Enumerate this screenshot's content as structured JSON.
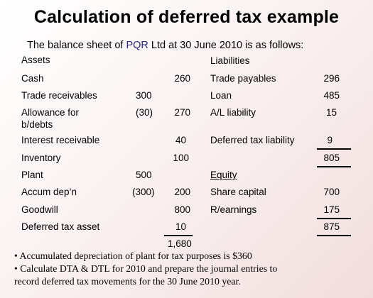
{
  "title": "Calculation of deferred tax example",
  "subtitle_prefix": "The balance sheet of ",
  "subtitle_company": "PQR",
  "subtitle_suffix": " Ltd at 30 June 2010 is as follows:",
  "headers": {
    "assets": "Assets",
    "liabilities": "Liabilities"
  },
  "assets": {
    "cash": {
      "label": "Cash",
      "value": "260"
    },
    "trade_receivables": {
      "label": "Trade receivables",
      "gross": "300"
    },
    "allowance": {
      "label_line1": "Allowance for",
      "label_line2": "b/debts",
      "gross": "(30)",
      "value": "270"
    },
    "interest_receivable": {
      "label": "Interest receivable",
      "value": "40"
    },
    "inventory": {
      "label": "Inventory",
      "value": "100"
    },
    "plant": {
      "label": "Plant",
      "gross": "500"
    },
    "accum_dep": {
      "label": "Accum dep’n",
      "gross": "(300)",
      "value": "200"
    },
    "goodwill": {
      "label": "Goodwill",
      "value": "800"
    },
    "deferred_tax_asset": {
      "label": "Deferred tax asset",
      "value": "10"
    },
    "total": "1,680"
  },
  "liabilities": {
    "trade_payables": {
      "label": "Trade payables",
      "value": "296"
    },
    "loan": {
      "label": "Loan",
      "value": "485"
    },
    "al_liability": {
      "label": "A/L liability",
      "value": "15"
    },
    "deferred_tax_liability": {
      "label": "Deferred tax liability",
      "value": "9"
    },
    "subtotal": "805",
    "equity_header": "Equity",
    "share_capital": {
      "label": "Share capital",
      "value": "700"
    },
    "r_earnings": {
      "label": "R/earnings",
      "value": "175"
    },
    "equity_total": "875"
  },
  "notes": [
    "• Accumulated depreciation of plant for tax purposes is $360",
    "• Calculate DTA & DTL for 2010 and prepare the journal entries to",
    "record deferred tax movements for the 30 June 2010 year."
  ]
}
